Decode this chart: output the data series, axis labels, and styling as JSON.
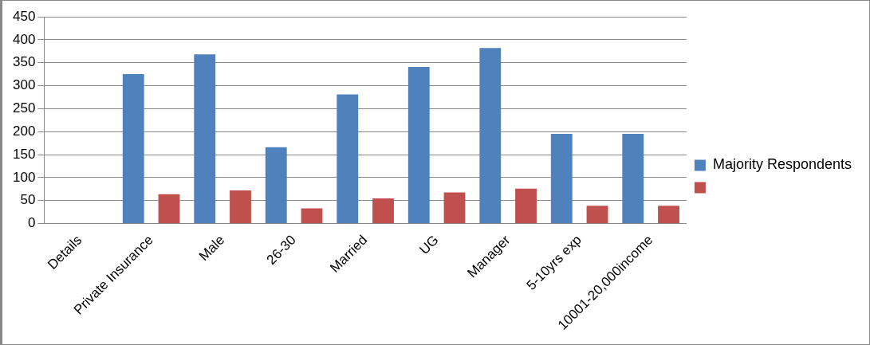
{
  "chart_data": {
    "type": "bar",
    "categories": [
      "Details",
      "Private Insurance",
      "Male",
      "26-30",
      "Married",
      "UG",
      "Manager",
      "5-10yrs exp",
      "10001-20,000income"
    ],
    "series": [
      {
        "name": "Majority Respondents",
        "color": "#4f81bd",
        "values": [
          null,
          325,
          368,
          166,
          281,
          341,
          382,
          195,
          195
        ]
      },
      {
        "color": "#c0504d",
        "values": [
          null,
          64,
          72,
          33,
          55,
          68,
          76,
          39,
          39
        ]
      }
    ],
    "ylim": [
      0,
      450
    ],
    "yticks": [
      0,
      50,
      100,
      150,
      200,
      250,
      300,
      350,
      400,
      450
    ],
    "grid": "y",
    "legend": "right"
  }
}
